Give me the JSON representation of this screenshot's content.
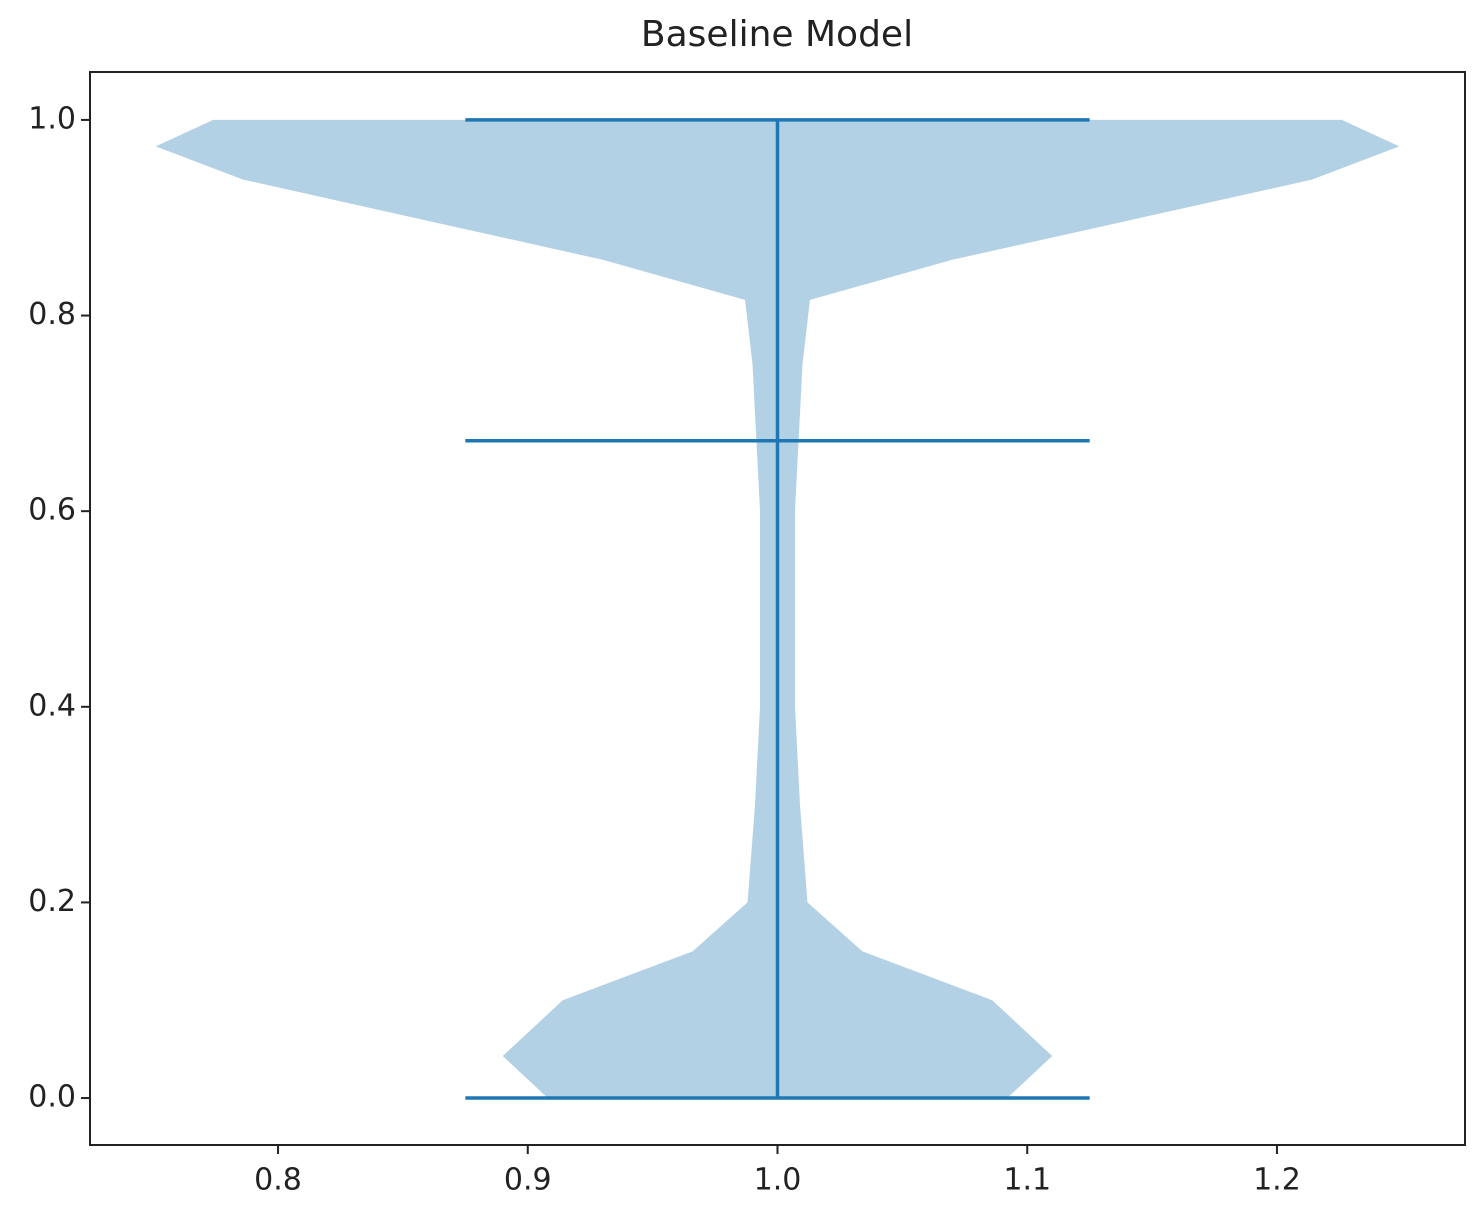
{
  "chart_data": {
    "type": "violin",
    "title": "Baseline Model",
    "color": "#1f77b4",
    "position": 1.0,
    "min": 0,
    "max": 1,
    "median": 0.672,
    "kde": {
      "y": [
        0,
        0.043,
        0.1,
        0.15,
        0.2,
        0.3,
        0.4,
        0.6,
        0.75,
        0.816,
        0.857,
        0.898,
        0.939,
        0.973,
        1.0
      ],
      "half_width": [
        0.092,
        0.11,
        0.086,
        0.034,
        0.012,
        0.009,
        0.007,
        0.007,
        0.01,
        0.013,
        0.07,
        0.142,
        0.214,
        0.249,
        0.226
      ]
    },
    "xlim": [
      0.7247,
      1.2753
    ],
    "ylim": [
      -0.048,
      1.049
    ],
    "xticks": [
      0.8,
      0.9,
      {
        "value": 1,
        "label": "1.0"
      },
      1.1,
      1.2
    ],
    "yticks": [
      {
        "value": 0,
        "label": "0.0"
      },
      0.2,
      0.4,
      0.6,
      0.8,
      {
        "value": 1,
        "label": "1.0"
      }
    ]
  }
}
